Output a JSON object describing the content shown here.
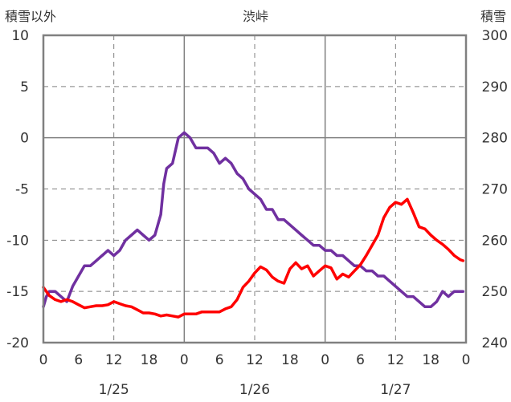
{
  "chart_data": {
    "type": "line",
    "title": "渋峠",
    "ylabel_left": "積雪以外",
    "ylabel_right": "積雪",
    "y_left_range": [
      -20,
      10
    ],
    "y_left_ticks": [
      "10",
      "5",
      "0",
      "-5",
      "-10",
      "-15",
      "-20"
    ],
    "y_right_range": [
      240,
      300
    ],
    "y_right_ticks": [
      "300",
      "290",
      "280",
      "270",
      "260",
      "250",
      "240"
    ],
    "x_range_hours": [
      0,
      72
    ],
    "x_hour_ticks": [
      "0",
      "6",
      "12",
      "18",
      "0",
      "6",
      "12",
      "18",
      "0",
      "6",
      "12",
      "18",
      "0"
    ],
    "date_labels": [
      "1/25",
      "1/26",
      "1/27"
    ],
    "grid": true,
    "series": [
      {
        "color": "#7030A0",
        "axis": "right",
        "x": [
          0,
          0.5,
          1,
          2,
          3,
          4,
          5,
          6,
          7,
          8,
          9,
          10,
          11,
          12,
          13,
          14,
          15,
          16,
          17,
          18,
          19,
          20,
          20.5,
          21,
          22,
          23,
          24,
          25,
          26,
          27,
          28,
          29,
          30,
          31,
          32,
          33,
          34,
          35,
          36,
          37,
          38,
          39,
          40,
          41,
          42,
          43,
          44,
          45,
          46,
          47,
          48,
          49,
          50,
          51,
          52,
          53,
          54,
          55,
          56,
          57,
          58,
          59,
          60,
          61,
          62,
          63,
          64,
          65,
          66,
          67,
          68,
          69,
          70,
          71,
          71.5
        ],
        "values": [
          247,
          249,
          250,
          250,
          249,
          248,
          251,
          253,
          255,
          255,
          256,
          257,
          258,
          257,
          258,
          260,
          261,
          262,
          261,
          260,
          261,
          265,
          271,
          274,
          275,
          280,
          281,
          280,
          278,
          278,
          278,
          277,
          275,
          276,
          275,
          273,
          272,
          270,
          269,
          268,
          266,
          266,
          264,
          264,
          263,
          262,
          261,
          260,
          259,
          259,
          258,
          258,
          257,
          257,
          256,
          255,
          255,
          254,
          254,
          253,
          253,
          252,
          251,
          250,
          249,
          249,
          248,
          247,
          247,
          248,
          250,
          249,
          250,
          250,
          250
        ]
      },
      {
        "color": "#FF0000",
        "axis": "left",
        "x": [
          0,
          1,
          2,
          3,
          4,
          5,
          6,
          7,
          8,
          9,
          10,
          11,
          12,
          13,
          14,
          15,
          16,
          17,
          18,
          19,
          20,
          21,
          22,
          23,
          24,
          25,
          26,
          27,
          28,
          29,
          30,
          31,
          32,
          33,
          34,
          35,
          36,
          37,
          38,
          39,
          40,
          41,
          42,
          43,
          44,
          45,
          46,
          47,
          48,
          49,
          50,
          51,
          52,
          53,
          54,
          55,
          56,
          57,
          58,
          59,
          60,
          61,
          62,
          63,
          64,
          65,
          66,
          67,
          68,
          69,
          70,
          71,
          71.5
        ],
        "values": [
          -14.6,
          -15.4,
          -15.8,
          -16.0,
          -15.8,
          -16.0,
          -16.3,
          -16.6,
          -16.5,
          -16.4,
          -16.4,
          -16.3,
          -16.0,
          -16.2,
          -16.4,
          -16.5,
          -16.8,
          -17.1,
          -17.1,
          -17.2,
          -17.4,
          -17.3,
          -17.4,
          -17.5,
          -17.2,
          -17.2,
          -17.2,
          -17.0,
          -17.0,
          -17.0,
          -17.0,
          -16.7,
          -16.5,
          -15.8,
          -14.6,
          -14.0,
          -13.2,
          -12.6,
          -12.9,
          -13.6,
          -14.0,
          -14.2,
          -12.8,
          -12.2,
          -12.8,
          -12.5,
          -13.5,
          -13.0,
          -12.5,
          -12.7,
          -13.8,
          -13.3,
          -13.6,
          -13.0,
          -12.4,
          -11.5,
          -10.5,
          -9.5,
          -7.8,
          -6.8,
          -6.3,
          -6.5,
          -6.0,
          -7.3,
          -8.7,
          -8.9,
          -9.5,
          -10.0,
          -10.4,
          -10.9,
          -11.5,
          -11.9,
          -12.0
        ]
      }
    ]
  }
}
